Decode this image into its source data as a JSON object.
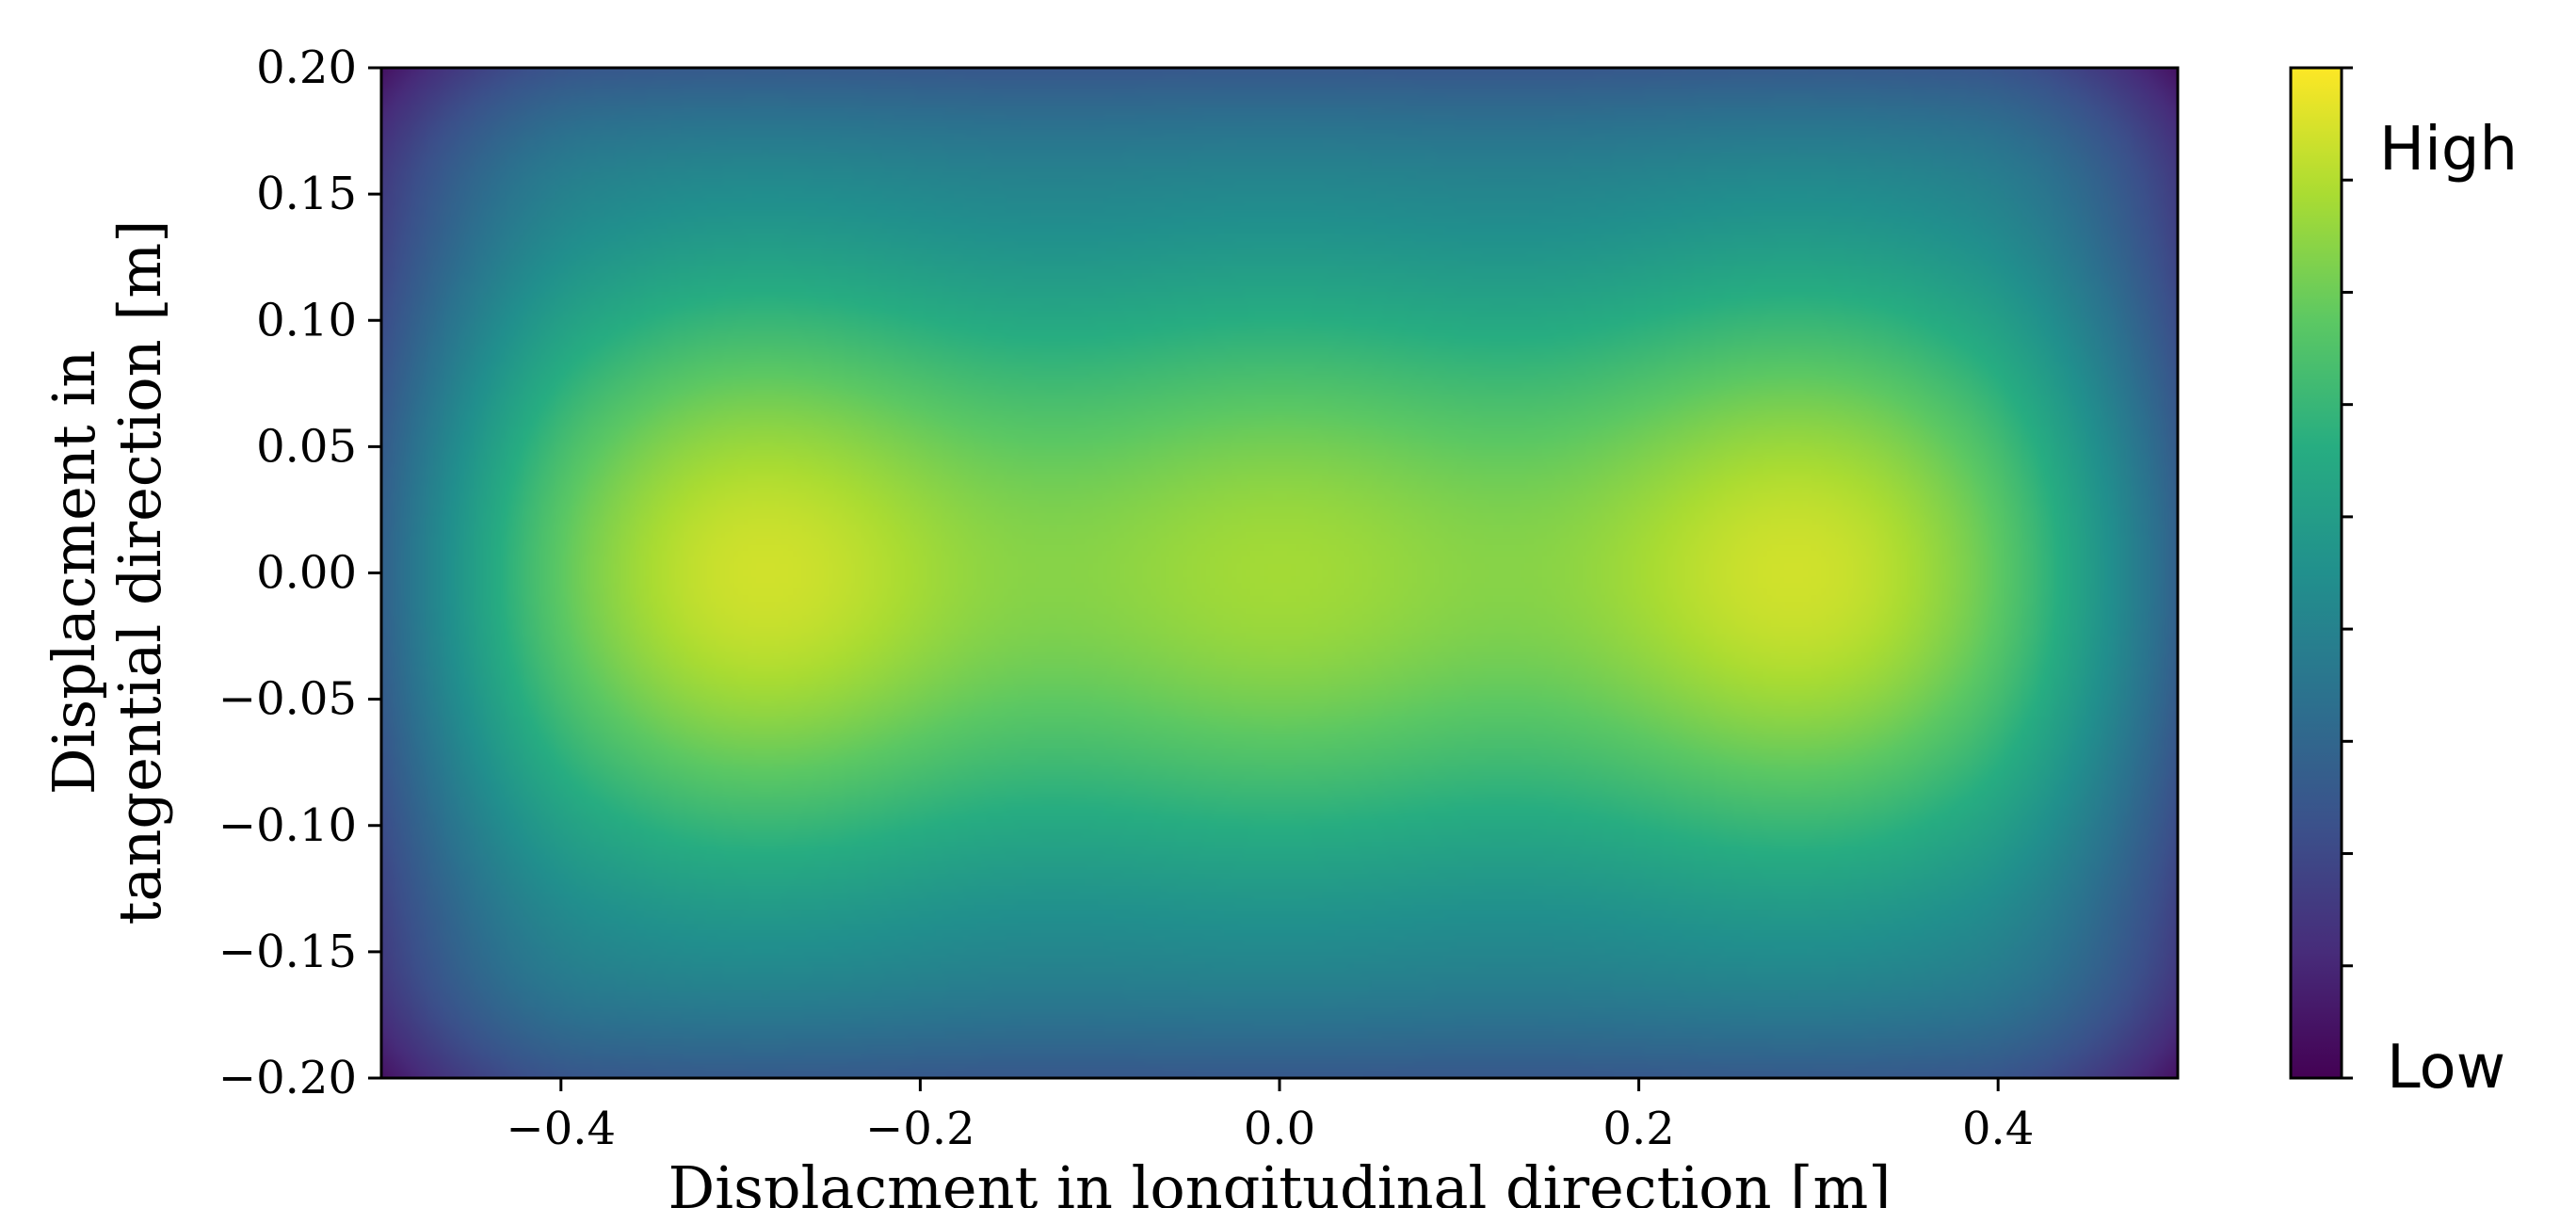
{
  "chart_data": {
    "type": "heatmap",
    "title": "",
    "xlabel": "Displacment in longitudinal direction [m]",
    "ylabel_lines": [
      "Displacment in",
      "tangential direction [m]"
    ],
    "xlim": [
      -0.5,
      0.5
    ],
    "ylim": [
      -0.2,
      0.2
    ],
    "x_ticks": [
      -0.4,
      -0.2,
      0.0,
      0.2,
      0.4
    ],
    "x_tick_labels": [
      "−0.4",
      "−0.2",
      "0.0",
      "0.2",
      "0.4"
    ],
    "y_ticks": [
      0.2,
      0.15,
      0.1,
      0.05,
      0.0,
      -0.05,
      -0.1,
      -0.15,
      -0.2
    ],
    "y_tick_labels": [
      "0.20",
      "0.15",
      "0.10",
      "0.05",
      "0.00",
      "−0.05",
      "−0.10",
      "−0.15",
      "−0.20"
    ],
    "colormap": "viridis",
    "colorbar": {
      "high_label": "High",
      "low_label": "Low",
      "tick_count": 9
    },
    "peaks": [
      {
        "x": -0.3,
        "y": 0.0,
        "level": 1.0
      },
      {
        "x": 0.0,
        "y": 0.0,
        "level": 0.88
      },
      {
        "x": 0.3,
        "y": 0.0,
        "level": 1.0
      }
    ],
    "grid": false
  }
}
